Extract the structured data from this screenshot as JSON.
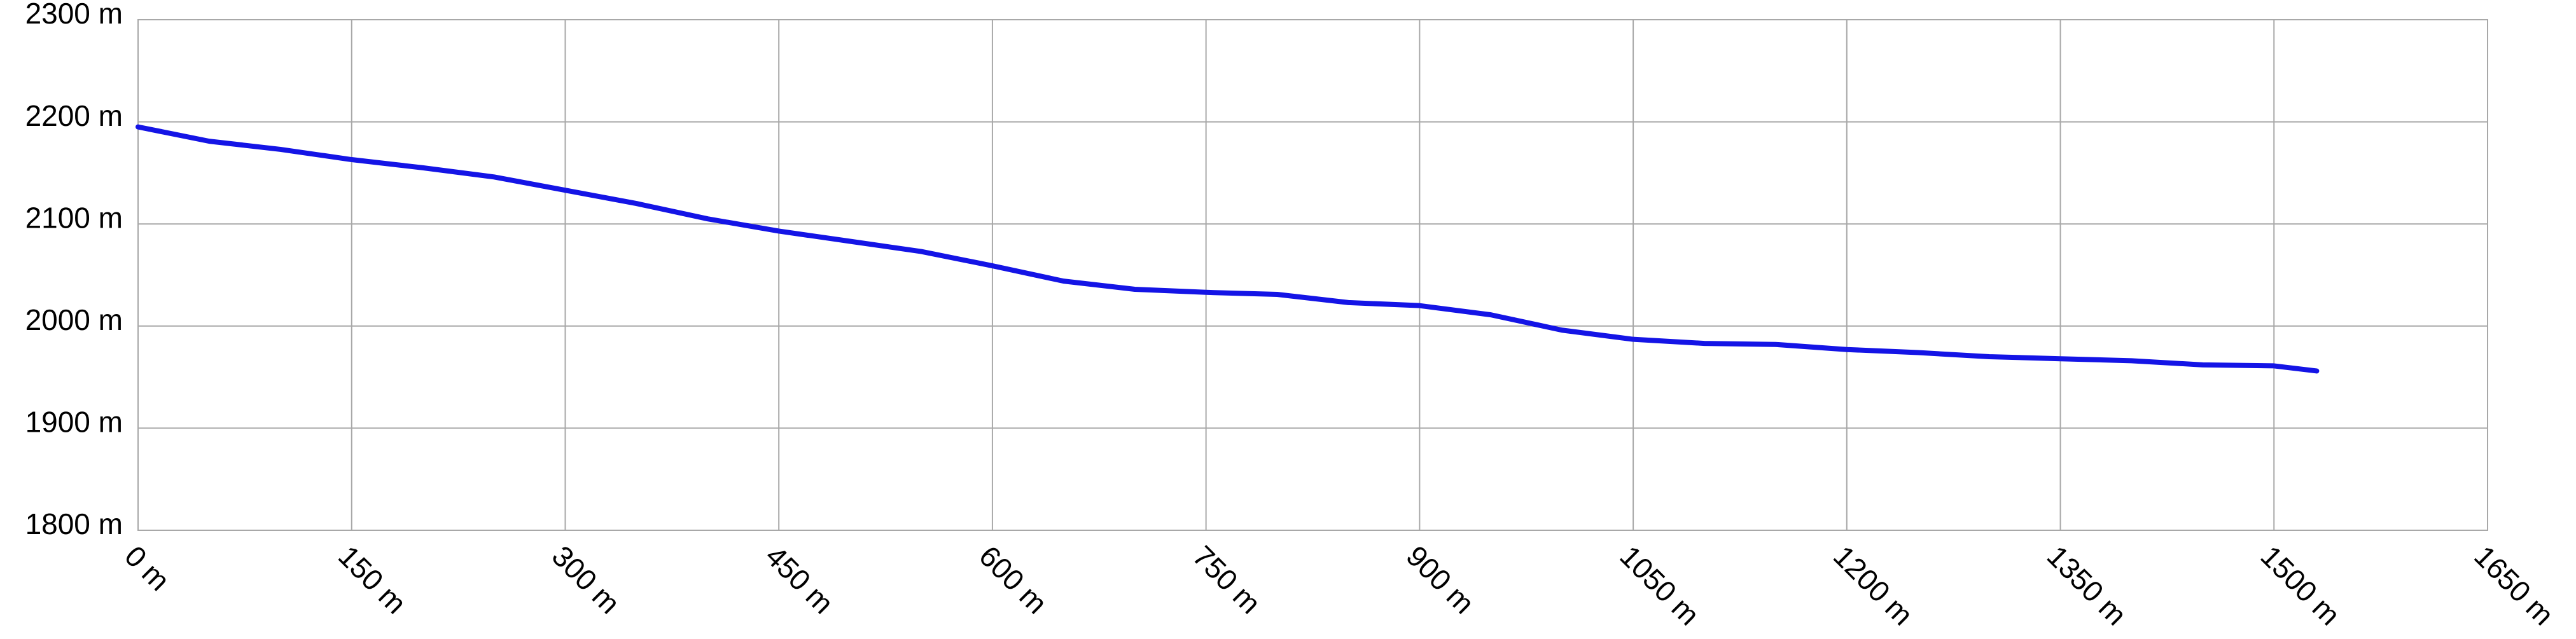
{
  "chart_data": {
    "type": "line",
    "x": [
      0,
      50,
      100,
      150,
      200,
      250,
      300,
      350,
      400,
      450,
      500,
      550,
      600,
      650,
      700,
      750,
      800,
      850,
      900,
      950,
      1000,
      1050,
      1100,
      1150,
      1200,
      1250,
      1300,
      1350,
      1400,
      1450,
      1500,
      1530
    ],
    "series": [
      {
        "color": "#1414e6",
        "values": [
          2195,
          2181,
          2173,
          2163,
          2155,
          2146,
          2133,
          2120,
          2105,
          2093,
          2083,
          2073,
          2059,
          2044,
          2036,
          2033,
          2031,
          2023,
          2020,
          2011,
          1996,
          1987,
          1983,
          1982,
          1977,
          1974,
          1970,
          1968,
          1966,
          1962,
          1961,
          1956
        ]
      }
    ],
    "xlim": [
      0,
      1650
    ],
    "xticks": [
      {
        "value": 0,
        "label": "0 m"
      },
      {
        "value": 150,
        "label": "150 m"
      },
      {
        "value": 300,
        "label": "300 m"
      },
      {
        "value": 450,
        "label": "450 m"
      },
      {
        "value": 600,
        "label": "600 m"
      },
      {
        "value": 750,
        "label": "750 m"
      },
      {
        "value": 900,
        "label": "900 m"
      },
      {
        "value": 1050,
        "label": "1050 m"
      },
      {
        "value": 1200,
        "label": "1200 m"
      },
      {
        "value": 1350,
        "label": "1350 m"
      },
      {
        "value": 1500,
        "label": "1500 m"
      },
      {
        "value": 1650,
        "label": "1650 m"
      }
    ],
    "ylim": [
      1800,
      2300
    ],
    "yticks": [
      {
        "value": 1800,
        "label": "1800 m"
      },
      {
        "value": 1900,
        "label": "1900 m"
      },
      {
        "value": 2000,
        "label": "2000 m"
      },
      {
        "value": 2100,
        "label": "2100 m"
      },
      {
        "value": 2200,
        "label": "2200 m"
      },
      {
        "value": 2300,
        "label": "2300 m"
      }
    ],
    "grid": true
  }
}
